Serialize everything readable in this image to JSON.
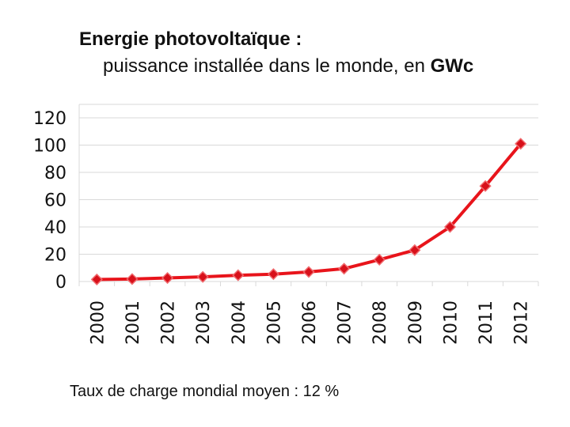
{
  "title": {
    "line1": "Energie photovoltaïque :",
    "line2_prefix": "puissance installée dans le monde, en ",
    "line2_unit": "GWc"
  },
  "footnote": "Taux de charge mondial moyen : 12 %",
  "colors": {
    "line": "#e8141b",
    "marker_fill": "#d8101a",
    "marker_stroke": "#f06a6e",
    "grid": "#d9d9d9"
  },
  "chart_data": {
    "type": "line",
    "title": "Energie photovoltaïque : puissance installée dans le monde, en GWc",
    "xlabel": "",
    "ylabel": "",
    "categories": [
      "2000",
      "2001",
      "2002",
      "2003",
      "2004",
      "2005",
      "2006",
      "2007",
      "2008",
      "2009",
      "2010",
      "2011",
      "2012"
    ],
    "series": [
      {
        "name": "Puissance installée (GWc)",
        "values": [
          1.5,
          1.8,
          2.6,
          3.4,
          4.6,
          5.4,
          7.0,
          9.4,
          16.0,
          23.0,
          40.0,
          70.0,
          101.0
        ]
      }
    ],
    "yticks": [
      0,
      20,
      40,
      60,
      80,
      100,
      120
    ],
    "ylim": [
      0,
      120
    ],
    "grid": true,
    "legend": "none"
  }
}
